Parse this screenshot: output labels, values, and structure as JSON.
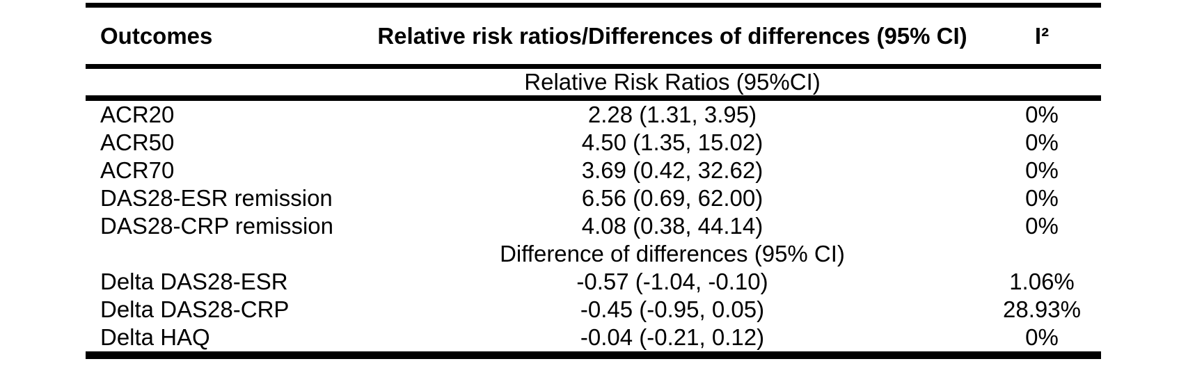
{
  "table": {
    "columns": [
      "Outcomes",
      "Relative risk ratios/Differences of differences (95% CI)",
      "I²"
    ],
    "sections": [
      {
        "header": "Relative Risk Ratios (95%CI)",
        "rows": [
          {
            "outcome": "ACR20",
            "estimate": "2.28 (1.31, 3.95)",
            "i2": "0%"
          },
          {
            "outcome": "ACR50",
            "estimate": "4.50 (1.35, 15.02)",
            "i2": "0%"
          },
          {
            "outcome": "ACR70",
            "estimate": "3.69 (0.42, 32.62)",
            "i2": "0%"
          },
          {
            "outcome": "DAS28-ESR remission",
            "estimate": "6.56 (0.69, 62.00)",
            "i2": "0%"
          },
          {
            "outcome": "DAS28-CRP remission",
            "estimate": "4.08 (0.38, 44.14)",
            "i2": "0%"
          }
        ]
      },
      {
        "header": "Difference of differences (95% CI)",
        "rows": [
          {
            "outcome": "Delta DAS28-ESR",
            "estimate": "-0.57 (-1.04, -0.10)",
            "i2": "1.06%"
          },
          {
            "outcome": "Delta DAS28-CRP",
            "estimate": "-0.45 (-0.95, 0.05)",
            "i2": "28.93%"
          },
          {
            "outcome": "Delta HAQ",
            "estimate": "-0.04 (-0.21, 0.12)",
            "i2": "0%"
          }
        ]
      }
    ],
    "colors": {
      "text": "#000000",
      "rule": "#000000",
      "background": "#ffffff"
    }
  }
}
